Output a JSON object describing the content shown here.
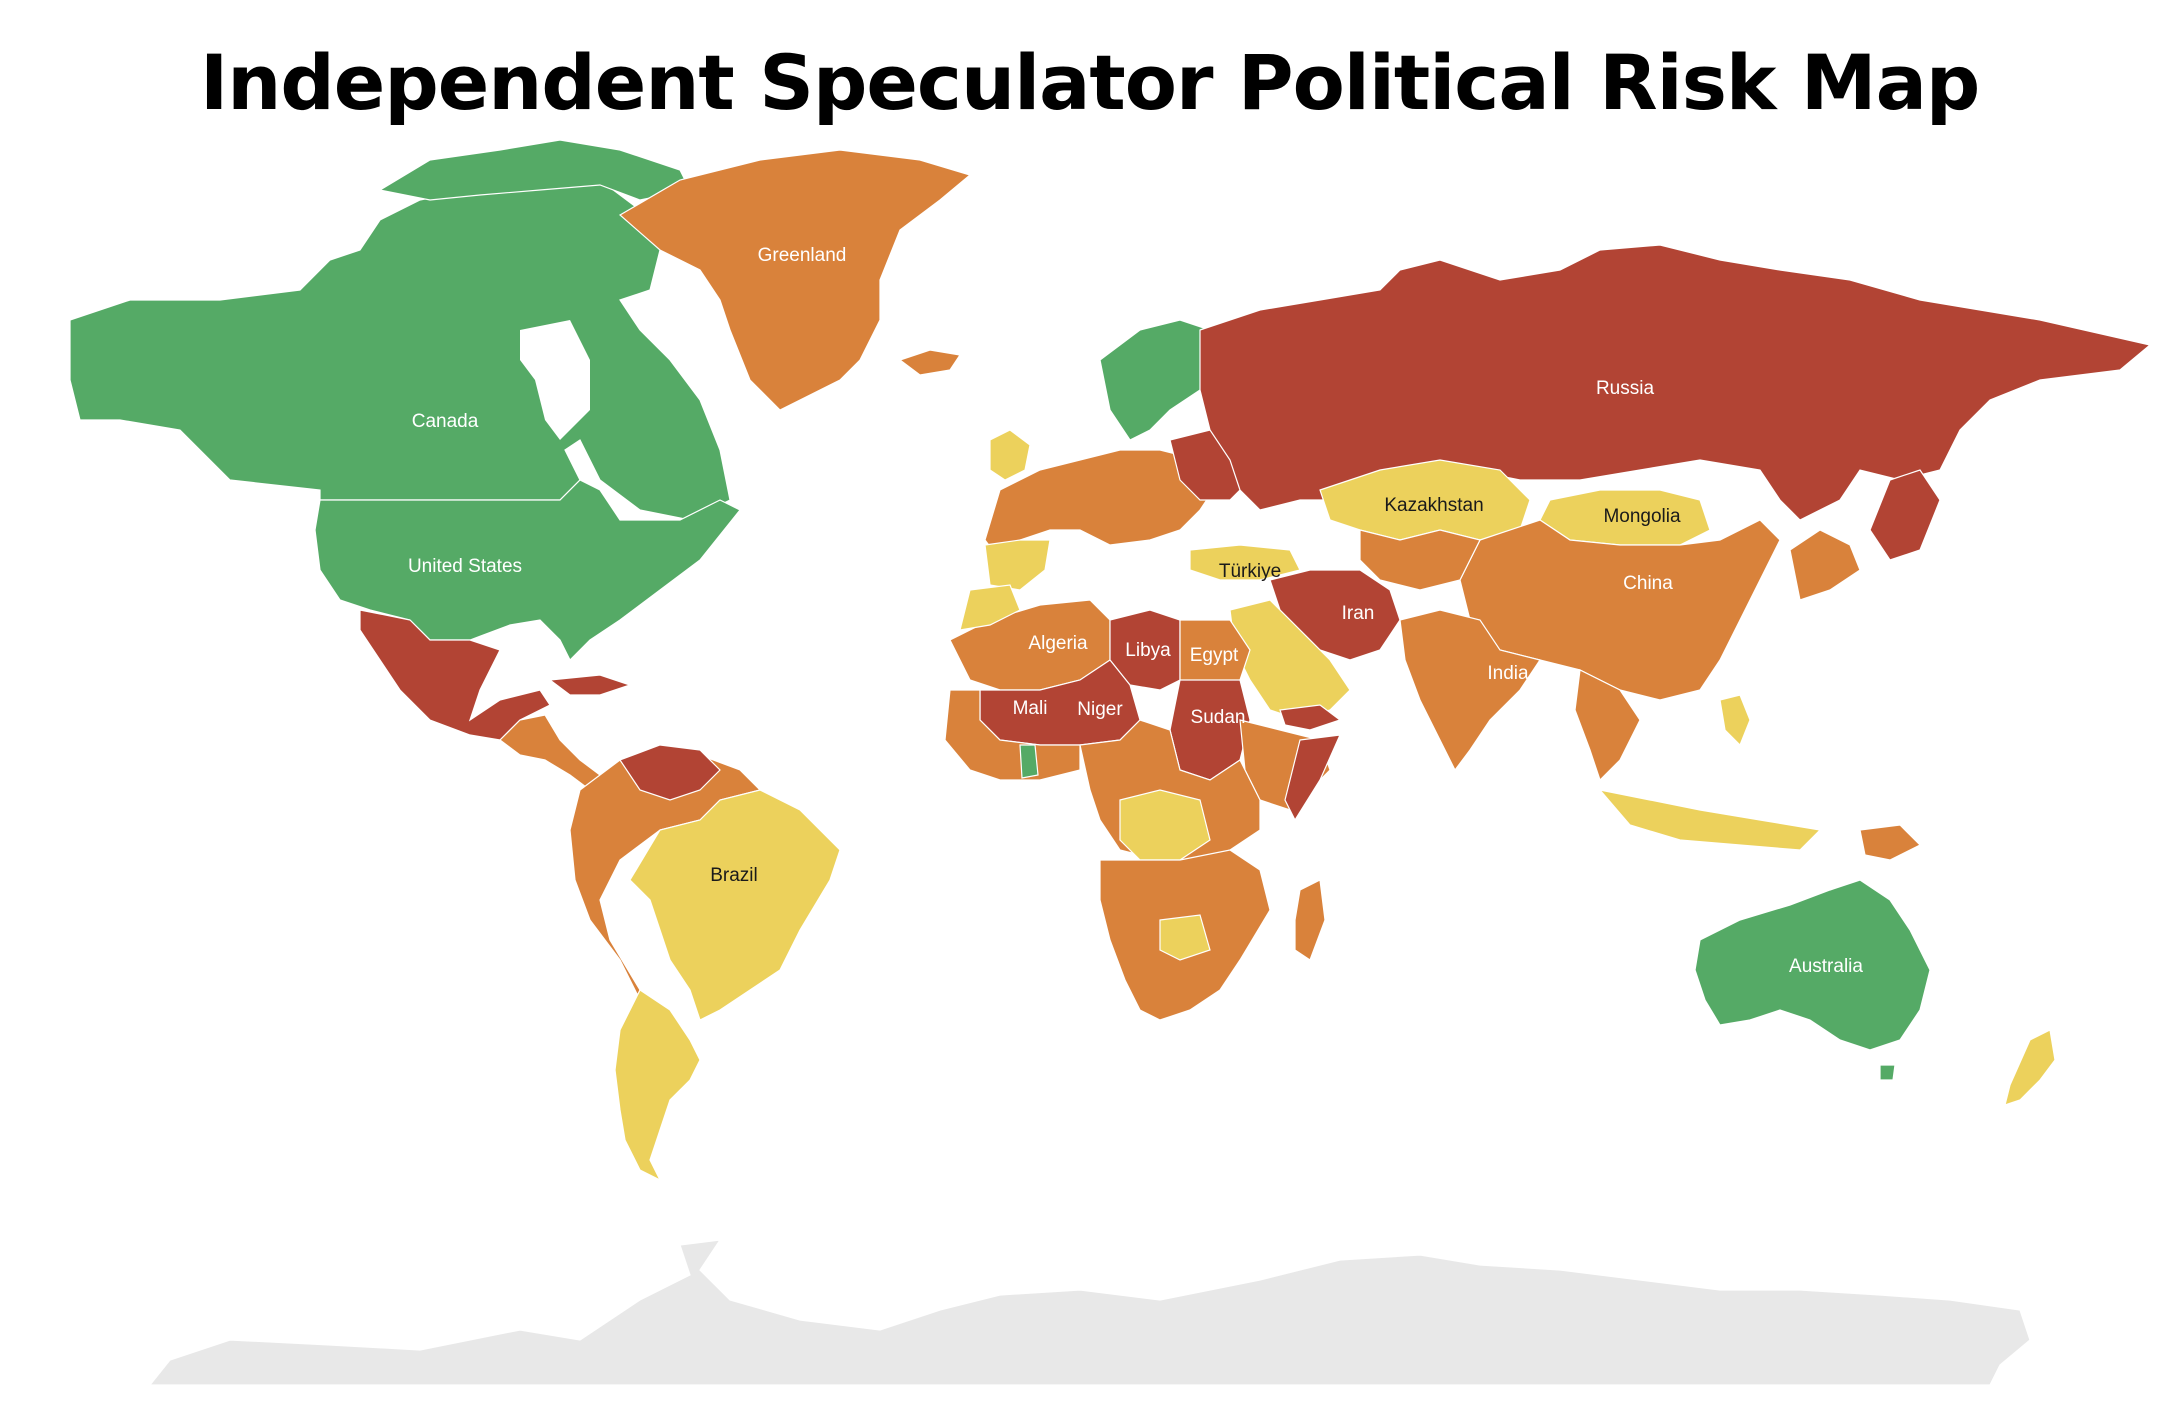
{
  "title": "Independent Speculator Political Risk Map",
  "colors": {
    "low": "#55aa66",
    "moderate": "#ecd15c",
    "elevated": "#d9823b",
    "high": "#b24434",
    "no_data": "#e8e8e8",
    "border": "#ffffff"
  },
  "countries": [
    {
      "name": "Canada",
      "risk": "low"
    },
    {
      "name": "United States",
      "risk": "low"
    },
    {
      "name": "Greenland",
      "risk": "elevated"
    },
    {
      "name": "Russia",
      "risk": "high"
    },
    {
      "name": "Kazakhstan",
      "risk": "moderate"
    },
    {
      "name": "Mongolia",
      "risk": "moderate"
    },
    {
      "name": "China",
      "risk": "elevated"
    },
    {
      "name": "Türkiye",
      "risk": "moderate"
    },
    {
      "name": "Iran",
      "risk": "high"
    },
    {
      "name": "India",
      "risk": "elevated"
    },
    {
      "name": "Algeria",
      "risk": "elevated"
    },
    {
      "name": "Libya",
      "risk": "high"
    },
    {
      "name": "Egypt",
      "risk": "elevated"
    },
    {
      "name": "Mali",
      "risk": "high"
    },
    {
      "name": "Niger",
      "risk": "high"
    },
    {
      "name": "Sudan",
      "risk": "high"
    },
    {
      "name": "Brazil",
      "risk": "moderate"
    },
    {
      "name": "Australia",
      "risk": "low"
    }
  ]
}
